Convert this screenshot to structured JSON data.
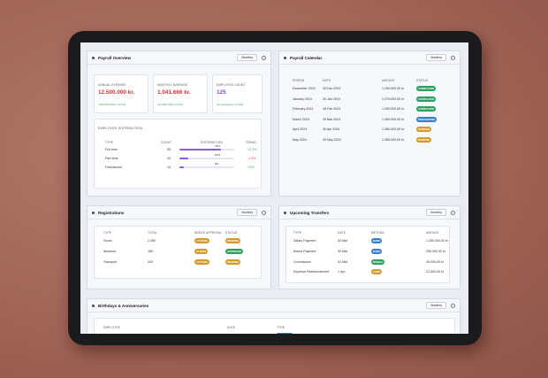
{
  "payroll_overview": {
    "title": "Payroll Overview",
    "period": "Monthly",
    "cards": [
      {
        "label": "ANNUAL EXPENSE",
        "value": "12.500.000 kr.",
        "change": "+500,000 DKK (+4.2%)"
      },
      {
        "label": "MONTHLY AVERAGE",
        "value": "1.041.666 kr.",
        "change": "+41,666 DKK (+4.2%)"
      },
      {
        "label": "EMPLOYEE COUNT",
        "value": "125",
        "change": "+5 employees (+4.2%)"
      }
    ],
    "distribution": {
      "title": "EMPLOYEE DISTRIBUTION",
      "headers": [
        "TYPE",
        "COUNT",
        "DISTRIBUTION",
        "TREND"
      ],
      "rows": [
        [
          "Full-time",
          95,
          {
            "value": 76,
            "label": "76%"
          },
          "+2.3%"
        ],
        [
          "Part-time",
          20,
          {
            "value": 16,
            "label": "16%"
          },
          "-1.2%"
        ],
        [
          "Freelancers",
          10,
          {
            "value": 8,
            "label": "8%"
          },
          "+3%"
        ]
      ]
    }
  },
  "payroll_calendar": {
    "title": "Payroll Calendar",
    "period": "Monthly",
    "headers": [
      "PERIOD",
      "DATE",
      "AMOUNT",
      "STATUS"
    ],
    "rows": [
      [
        "December 2023",
        "30 Dec 2023",
        "1.250.000,00 kr",
        "COMPLETED"
      ],
      [
        "January 2024",
        "30 Jan 2024",
        "1.275.000,00 kr",
        "COMPLETED"
      ],
      [
        "February 2024",
        "28 Feb 2024",
        "1.250.000,00 kr",
        "COMPLETED"
      ],
      [
        "March 2024",
        "30 Mar 2024",
        "1.280.000,00 kr",
        "PROCESSING"
      ],
      [
        "April 2024",
        "30 Apr 2024",
        "1.280.000,00 kr",
        "PENDING"
      ],
      [
        "May 2024",
        "30 May 2024",
        "1.285.000,00 kr",
        "PENDING"
      ]
    ]
  },
  "registrations": {
    "title": "Registrations",
    "period": "Monthly",
    "headers": [
      "TYPE",
      "TOTAL",
      "NEEDS APPROVAL",
      "STATUS"
    ],
    "rows": [
      [
        "Hours",
        "2,450",
        "15 ITEMS",
        "PENDING"
      ],
      [
        "Absence",
        "180",
        "8 ITEMS",
        "APPROVED"
      ],
      [
        "Transport",
        "320",
        "12 ITEMS",
        "PENDING"
      ]
    ]
  },
  "upcoming_transfers": {
    "title": "Upcoming Transfers",
    "period": "Monthly",
    "headers": [
      "TYPE",
      "DATE",
      "METHOD",
      "AMOUNT"
    ],
    "rows": [
      [
        "Salary Payment",
        "30 Mar",
        "BANK",
        "1.250.000,00 kr"
      ],
      [
        "Bonus Payment",
        "30 Mar",
        "BANK",
        "250.000,00 kr"
      ],
      [
        "Commission",
        "31 Mar",
        "MOBILE",
        "45.000,00 kr"
      ],
      [
        "Expense Reimbursement",
        "1 Apr",
        "CARD",
        "12.500,00 kr"
      ]
    ]
  },
  "birthdays": {
    "title": "Birthdays & Anniversaries",
    "period": "Monthly",
    "headers": [
      "EMPLOYEE",
      "DATE",
      "TYPE"
    ]
  }
}
